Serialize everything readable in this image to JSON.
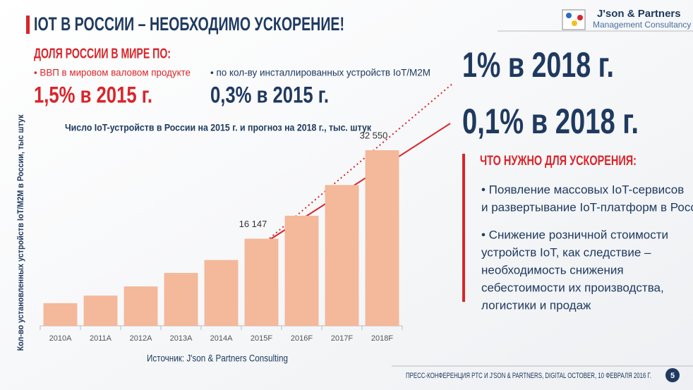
{
  "header": {
    "title": "IOT В РОССИИ – НЕОБХОДИМО УСКОРЕНИЕ!",
    "logo_name": "J'son & Partners",
    "logo_sub": "Management Consultancy"
  },
  "share": {
    "heading": "ДОЛЯ РОССИИ В МИРЕ ПО:",
    "gdp_label": "• ВВП в мировом валовом продукте",
    "gdp_2015": "1,5% в 2015 г.",
    "iot_label": "• по кол-ву инсталлированных устройств IoT/M2M",
    "iot_2015": "0,3% в 2015 г.",
    "gdp_2018": "1% в 2018 г.",
    "iot_2018": "0,1% в 2018 г."
  },
  "needs": {
    "heading": "ЧТО НУЖНО ДЛЯ УСКОРЕНИЯ:",
    "items": [
      [
        "• Появление массовых IoT-сервисов",
        "и развертывание IoT-платформ в России"
      ],
      [
        "• Снижение розничной стоимости",
        "устройств IoT, как следствие –",
        "необходимость снижения",
        "себестоимости их производства,",
        "логистики и продаж"
      ]
    ]
  },
  "footer": {
    "text": "ПРЕСС-КОНФЕРЕНЦИЯ PTC И J'SON & PARTNERS, DIGITAL OCTOBER, 10 ФЕВРАЛЯ 2016 Г.",
    "page": "5"
  },
  "chart_data": {
    "type": "bar",
    "title": "Число IoT-устройств в России на 2015 г. и прогноз на 2018 г., тыс. штук",
    "y_label": "Кол-во установленных устройств IoT/M2M в России, тыс штук",
    "source": "Источник: J'son & Partners Consulting",
    "categories": [
      "2010A",
      "2011A",
      "2012A",
      "2013A",
      "2014A",
      "2015F",
      "2016F",
      "2017F",
      "2018F"
    ],
    "values": [
      4200,
      5600,
      7300,
      9800,
      12200,
      16147,
      20400,
      26100,
      32550
    ],
    "value_labels": [
      null,
      null,
      null,
      null,
      null,
      "16 147",
      null,
      null,
      "32 550"
    ],
    "color": "#f4b89a"
  }
}
